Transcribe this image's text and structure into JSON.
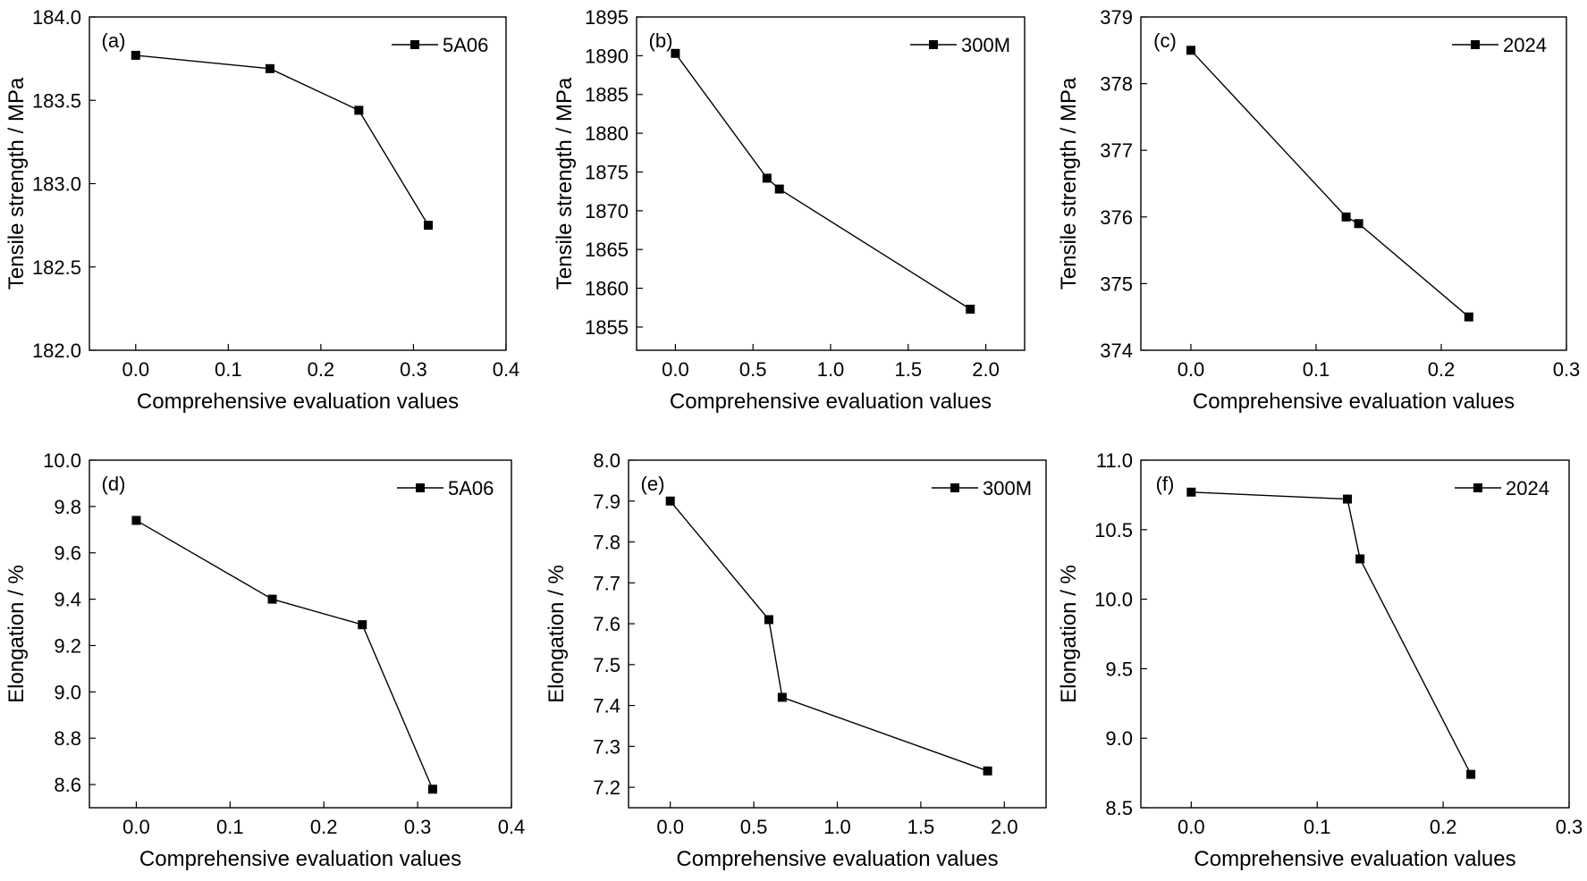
{
  "figure": {
    "background": "#ffffff",
    "line_color": "#000000",
    "marker": "filled-square"
  },
  "chart_data": [
    {
      "type": "line",
      "panel_label": "(a)",
      "xlabel": "Comprehensive evaluation values",
      "ylabel": "Tensile strength / MPa",
      "xlim": [
        -0.05,
        0.4
      ],
      "ylim": [
        182.0,
        184.0
      ],
      "xticks": [
        "0.0",
        "0.1",
        "0.2",
        "0.3",
        "0.4"
      ],
      "yticks": [
        "182.0",
        "182.5",
        "183.0",
        "183.5",
        "184.0"
      ],
      "legend_position": "top-right",
      "grid": false,
      "series": [
        {
          "name": "5A06",
          "x": [
            0.0,
            0.145,
            0.241,
            0.316
          ],
          "y": [
            183.77,
            183.69,
            183.44,
            182.75
          ]
        }
      ]
    },
    {
      "type": "line",
      "panel_label": "(b)",
      "xlabel": "Comprehensive evaluation values",
      "ylabel": "Tensile strength / MPa",
      "xlim": [
        -0.25,
        2.25
      ],
      "ylim": [
        1852,
        1895
      ],
      "xticks": [
        "0.0",
        "0.5",
        "1.0",
        "1.5",
        "2.0"
      ],
      "yticks": [
        "1855",
        "1860",
        "1865",
        "1870",
        "1875",
        "1880",
        "1885",
        "1890",
        "1895"
      ],
      "legend_position": "top-right",
      "grid": false,
      "series": [
        {
          "name": "300M",
          "x": [
            0.0,
            0.59,
            0.67,
            1.9
          ],
          "y": [
            1890.3,
            1874.2,
            1872.8,
            1857.3
          ]
        }
      ]
    },
    {
      "type": "line",
      "panel_label": "(c)",
      "xlabel": "Comprehensive evaluation values",
      "ylabel": "Tensile strength / MPa",
      "xlim": [
        -0.04,
        0.3
      ],
      "ylim": [
        374,
        379
      ],
      "xticks": [
        "0.0",
        "0.1",
        "0.2",
        "0.3"
      ],
      "yticks": [
        "374",
        "375",
        "376",
        "377",
        "378",
        "379"
      ],
      "legend_position": "top-right",
      "grid": false,
      "series": [
        {
          "name": "2024",
          "x": [
            0.0,
            0.124,
            0.134,
            0.222
          ],
          "y": [
            378.5,
            376.0,
            375.9,
            374.5
          ]
        }
      ]
    },
    {
      "type": "line",
      "panel_label": "(d)",
      "xlabel": "Comprehensive evaluation values",
      "ylabel": "Elongation / %",
      "xlim": [
        -0.05,
        0.4
      ],
      "ylim": [
        8.5,
        10.0
      ],
      "xticks": [
        "0.0",
        "0.1",
        "0.2",
        "0.3",
        "0.4"
      ],
      "yticks": [
        "8.6",
        "8.8",
        "9.0",
        "9.2",
        "9.4",
        "9.6",
        "9.8",
        "10.0"
      ],
      "legend_position": "top-right",
      "grid": false,
      "series": [
        {
          "name": "5A06",
          "x": [
            0.0,
            0.145,
            0.241,
            0.316
          ],
          "y": [
            9.74,
            9.4,
            9.29,
            8.58
          ]
        }
      ]
    },
    {
      "type": "line",
      "panel_label": "(e)",
      "xlabel": "Comprehensive evaluation values",
      "ylabel": "Elongation / %",
      "xlim": [
        -0.25,
        2.25
      ],
      "ylim": [
        7.15,
        8.0
      ],
      "xticks": [
        "0.0",
        "0.5",
        "1.0",
        "1.5",
        "2.0"
      ],
      "yticks": [
        "7.2",
        "7.3",
        "7.4",
        "7.5",
        "7.6",
        "7.7",
        "7.8",
        "7.9",
        "8.0"
      ],
      "legend_position": "top-right",
      "grid": false,
      "series": [
        {
          "name": "300M",
          "x": [
            0.0,
            0.59,
            0.67,
            1.9
          ],
          "y": [
            7.9,
            7.61,
            7.42,
            7.24
          ]
        }
      ]
    },
    {
      "type": "line",
      "panel_label": "(f)",
      "xlabel": "Comprehensive evaluation values",
      "ylabel": "Elongation / %",
      "xlim": [
        -0.04,
        0.3
      ],
      "ylim": [
        8.5,
        11.0
      ],
      "xticks": [
        "0.0",
        "0.1",
        "0.2",
        "0.3"
      ],
      "yticks": [
        "8.5",
        "9.0",
        "9.5",
        "10.0",
        "10.5",
        "11.0"
      ],
      "legend_position": "top-right",
      "grid": false,
      "series": [
        {
          "name": "2024",
          "x": [
            0.0,
            0.124,
            0.134,
            0.222
          ],
          "y": [
            10.77,
            10.72,
            10.29,
            8.74
          ]
        }
      ]
    }
  ]
}
